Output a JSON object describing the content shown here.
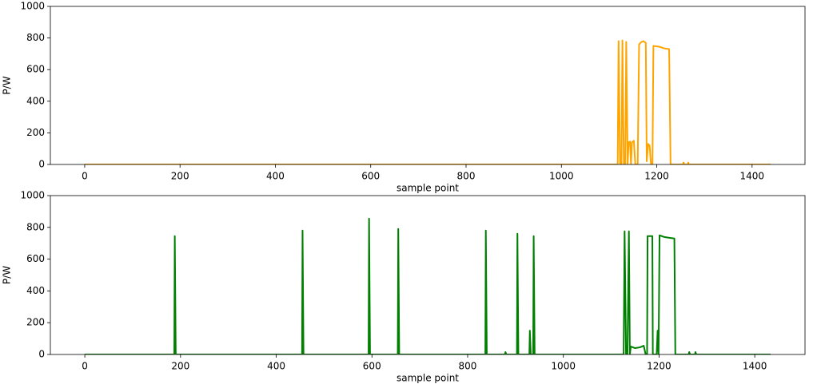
{
  "chart_data": [
    {
      "type": "line",
      "xlabel": "sample point",
      "ylabel": "P/W",
      "xlim": [
        -72,
        1511
      ],
      "ylim": [
        0,
        1000
      ],
      "xticks": [
        0,
        200,
        400,
        600,
        800,
        1000,
        1200,
        1400
      ],
      "yticks": [
        0,
        200,
        400,
        600,
        800,
        1000
      ],
      "series": [
        {
          "color": "#ffa500",
          "x": [
            0,
            1118,
            1120,
            1123,
            1126,
            1128,
            1131,
            1134,
            1136,
            1139,
            1141,
            1144,
            1146,
            1148,
            1152,
            1155,
            1160,
            1163,
            1168,
            1172,
            1177,
            1179,
            1182,
            1185,
            1188,
            1191,
            1193,
            1205,
            1215,
            1226,
            1229,
            1255,
            1256,
            1258,
            1265,
            1266,
            1268,
            1439
          ],
          "values": [
            0,
            0,
            780,
            0,
            0,
            785,
            0,
            0,
            775,
            0,
            140,
            145,
            0,
            140,
            150,
            0,
            0,
            760,
            775,
            780,
            770,
            20,
            130,
            120,
            0,
            0,
            750,
            745,
            735,
            730,
            0,
            0,
            12,
            0,
            0,
            12,
            0,
            0
          ]
        }
      ]
    },
    {
      "type": "line",
      "xlabel": "sample point",
      "ylabel": "P/W",
      "xlim": [
        -72,
        1505
      ],
      "ylim": [
        0,
        1000
      ],
      "xticks": [
        0,
        200,
        400,
        600,
        800,
        1000,
        1200,
        1400
      ],
      "yticks": [
        0,
        200,
        400,
        600,
        800,
        1000
      ],
      "series": [
        {
          "color": "#008000",
          "x": [
            0,
            187,
            188,
            190,
            454,
            455,
            457,
            593,
            594,
            596,
            654,
            655,
            657,
            837,
            838,
            840,
            878,
            879,
            881,
            903,
            904,
            906,
            929,
            930,
            932,
            937,
            938,
            940,
            1126,
            1128,
            1131,
            1134,
            1137,
            1139,
            1141,
            1150,
            1160,
            1168,
            1172,
            1175,
            1176,
            1186,
            1187,
            1195,
            1197,
            1199,
            1201,
            1210,
            1220,
            1232,
            1234,
            1262,
            1263,
            1265,
            1275,
            1276,
            1278,
            1433
          ],
          "values": [
            0,
            0,
            745,
            0,
            0,
            780,
            0,
            0,
            855,
            0,
            0,
            790,
            0,
            0,
            780,
            0,
            0,
            15,
            0,
            0,
            760,
            0,
            0,
            150,
            0,
            0,
            745,
            0,
            0,
            775,
            0,
            0,
            775,
            0,
            50,
            40,
            45,
            55,
            0,
            0,
            745,
            745,
            0,
            0,
            150,
            0,
            750,
            740,
            735,
            730,
            0,
            0,
            15,
            0,
            0,
            15,
            0,
            0
          ]
        }
      ]
    }
  ]
}
